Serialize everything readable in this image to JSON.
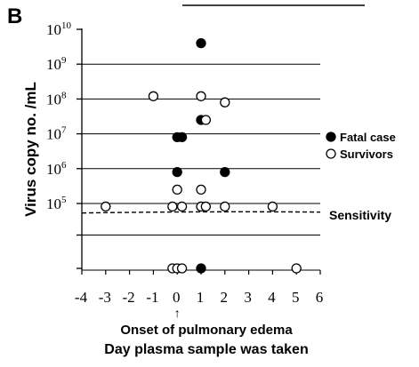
{
  "chart_data": {
    "type": "scatter",
    "panel_label": "B",
    "xlabel": "Day plasma sample was taken",
    "ylabel": "Virus copy no. /mL",
    "x_annotation": "Onset of pulmonary edema",
    "x_annotation_arrow": "↑",
    "x_annotation_at": 0,
    "xlim": [
      -4,
      6
    ],
    "x_ticks": [
      -4,
      -3,
      -2,
      -1,
      0,
      1,
      2,
      3,
      4,
      5,
      6
    ],
    "y_scale": "log",
    "y_ticks": [
      {
        "value": 100000,
        "label": "10",
        "exp": "5"
      },
      {
        "value": 1000000,
        "label": "10",
        "exp": "6"
      },
      {
        "value": 10000000,
        "label": "10",
        "exp": "7"
      },
      {
        "value": 100000000,
        "label": "10",
        "exp": "8"
      },
      {
        "value": 1000000000,
        "label": "10",
        "exp": "9"
      },
      {
        "value": 10000000000,
        "label": "10",
        "exp": "10"
      }
    ],
    "y_gridlines": [
      10000,
      100000,
      1000000,
      10000000,
      100000000,
      1000000000
    ],
    "y_below_sensitivity": 1000,
    "sensitivity": {
      "value": 50000,
      "label": "Sensitivity"
    },
    "series": [
      {
        "name": "Fatal case",
        "marker": "filled-circle",
        "points": [
          {
            "x": 0,
            "y": 800000
          },
          {
            "x": 0,
            "y": 8000000
          },
          {
            "x": 0.2,
            "y": 8000000
          },
          {
            "x": 1,
            "y": 4000000000
          },
          {
            "x": 1,
            "y": 25000000
          },
          {
            "x": 2,
            "y": 800000
          },
          {
            "x": 1,
            "y": 1000
          }
        ]
      },
      {
        "name": "Survivors",
        "marker": "open-circle",
        "points": [
          {
            "x": -3,
            "y": 80000
          },
          {
            "x": -1,
            "y": 120000000
          },
          {
            "x": 1,
            "y": 120000000
          },
          {
            "x": 2,
            "y": 80000000
          },
          {
            "x": 1.2,
            "y": 25000000
          },
          {
            "x": 0,
            "y": 250000
          },
          {
            "x": 1,
            "y": 250000
          },
          {
            "x": -0.2,
            "y": 80000
          },
          {
            "x": 0.2,
            "y": 80000
          },
          {
            "x": 1,
            "y": 80000
          },
          {
            "x": 1.2,
            "y": 80000
          },
          {
            "x": 2,
            "y": 80000
          },
          {
            "x": 4,
            "y": 80000
          },
          {
            "x": -0.2,
            "y": 1000
          },
          {
            "x": 0,
            "y": 1000
          },
          {
            "x": 0.2,
            "y": 1000
          },
          {
            "x": 5,
            "y": 1000
          }
        ]
      }
    ],
    "legend": {
      "position": "right"
    }
  }
}
